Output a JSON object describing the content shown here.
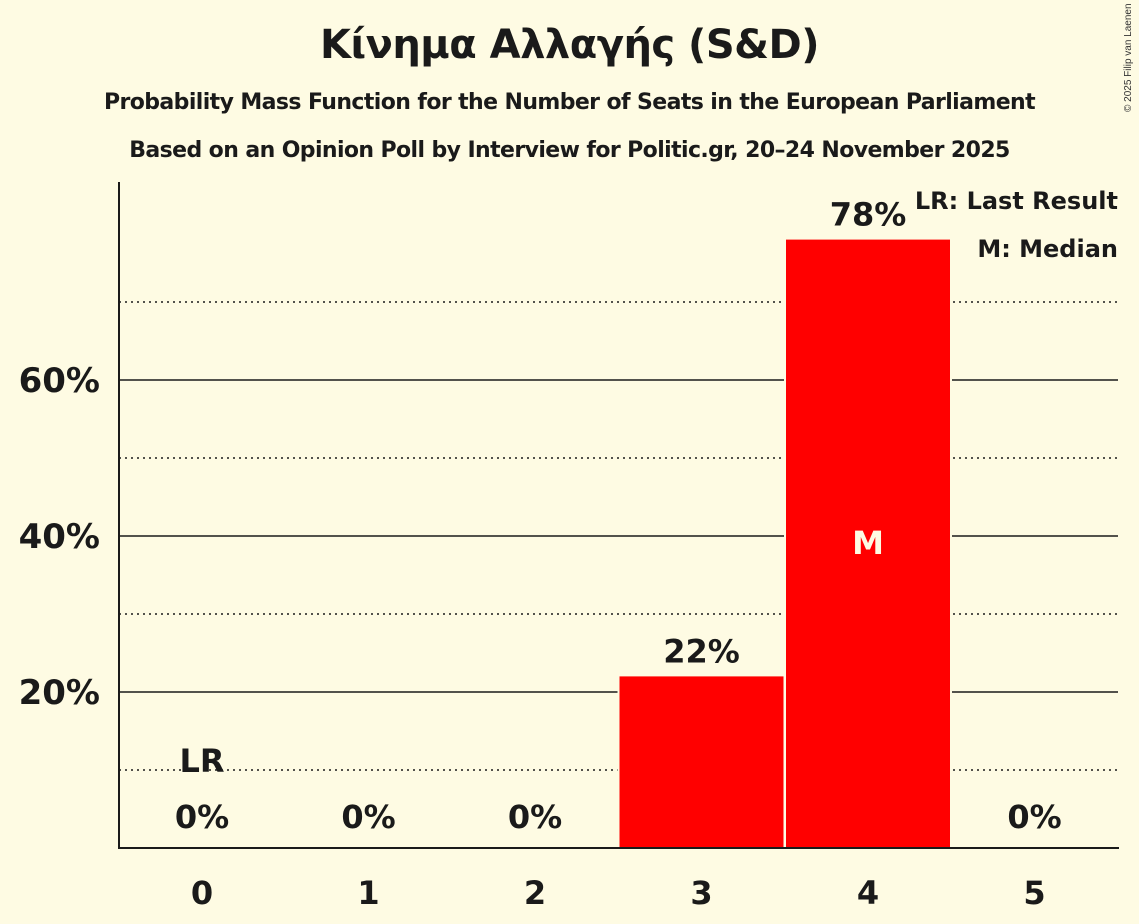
{
  "header": {
    "title": "Κίνημα Αλλαγής (S&D)",
    "subtitle_1": "Probability Mass Function for the Number of Seats in the European Parliament",
    "subtitle_2": "Based on an Opinion Poll by Interview for Politic.gr, 20–24 November 2025",
    "copyright": "© 2025 Filip van Laenen"
  },
  "legend": {
    "last_result": "LR: Last Result",
    "median": "M: Median"
  },
  "colors": {
    "background": "#fefbe3",
    "bar": "#ff0000",
    "text": "#1a1a1a",
    "median_text": "#fefbe3"
  },
  "chart_data": {
    "type": "bar",
    "title": "Κίνημα Αλλαγής (S&D)",
    "subtitle": "Probability Mass Function for the Number of Seats in the European Parliament — Based on an Opinion Poll by Interview for Politic.gr, 20–24 November 2025",
    "xlabel": "",
    "ylabel": "",
    "categories": [
      "0",
      "1",
      "2",
      "3",
      "4",
      "5"
    ],
    "values": [
      0,
      0,
      0,
      22,
      78,
      0
    ],
    "value_labels": [
      "0%",
      "0%",
      "0%",
      "22%",
      "78%",
      "0%"
    ],
    "ylim": [
      0,
      85
    ],
    "y_ticks": [
      20,
      40,
      60
    ],
    "y_tick_labels": [
      "20%",
      "40%",
      "60%"
    ],
    "minor_gridlines": [
      10,
      30,
      50,
      70
    ],
    "grid": true,
    "annotations": [
      {
        "category": "0",
        "label": "LR",
        "meaning": "Last Result"
      },
      {
        "category": "4",
        "label": "M",
        "meaning": "Median"
      }
    ],
    "legend": [
      "LR: Last Result",
      "M: Median"
    ],
    "legend_position": "top-right"
  }
}
